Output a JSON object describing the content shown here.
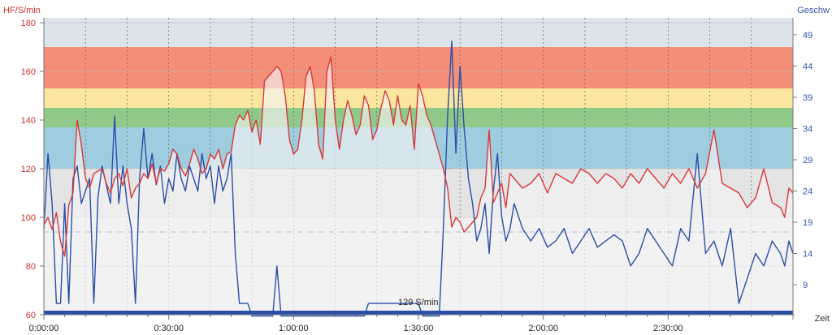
{
  "header": {
    "left_axis_title": "HF/S/min",
    "right_axis_title": "Geschw",
    "x_axis_title": "Zeit"
  },
  "colors": {
    "hr_line": "#d63a3a",
    "speed_line": "#2a4fa8",
    "zone_top": "#dde3ea",
    "zone_red": "#f48e78",
    "zone_yellow": "#fbe6a0",
    "zone_green": "#8ec987",
    "zone_blue": "#9ecde0",
    "zone_grey": "#e4e4e4",
    "plot_bg": "#f0eff0",
    "hr_fill": "#f5f2f2",
    "left_tick_color": "#d03030",
    "right_tick_color": "#3355aa"
  },
  "annotation": {
    "text": "129 S/min"
  },
  "chart_data": {
    "type": "line",
    "x_unit": "minutes",
    "xlim": [
      0,
      180
    ],
    "x_ticks": [
      {
        "value": 0,
        "label": "0:00:00"
      },
      {
        "value": 30,
        "label": "0:30:00"
      },
      {
        "value": 60,
        "label": "1:00:00"
      },
      {
        "value": 90,
        "label": "1:30:00"
      },
      {
        "value": 120,
        "label": "2:00:00"
      },
      {
        "value": 150,
        "label": "2:30:00"
      }
    ],
    "left_axis": {
      "label": "HF/S/min",
      "ylim": [
        60,
        182
      ],
      "ticks": [
        60,
        80,
        100,
        120,
        140,
        160,
        180
      ]
    },
    "right_axis": {
      "label": "Geschw",
      "ticks": [
        9,
        14,
        19,
        24,
        29,
        34,
        39,
        44,
        49
      ]
    },
    "hr_zones": [
      {
        "from": 170,
        "to": 182,
        "color": "zone_top"
      },
      {
        "from": 153,
        "to": 170,
        "color": "zone_red"
      },
      {
        "from": 145,
        "to": 153,
        "color": "zone_yellow"
      },
      {
        "from": 137,
        "to": 145,
        "color": "zone_green"
      },
      {
        "from": 120,
        "to": 137,
        "color": "zone_blue"
      },
      {
        "from": 100,
        "to": 120,
        "color": "zone_grey"
      }
    ],
    "reference_lines": [
      {
        "axis": "left",
        "value": 120,
        "from_x": 48,
        "to_x": 98,
        "style": "dotted",
        "color": "hr_line"
      },
      {
        "axis": "left",
        "value": 94,
        "style": "dash-dot",
        "color": "speed_line"
      }
    ],
    "series": [
      {
        "name": "HF",
        "axis": "left",
        "x": [
          0,
          1,
          2,
          3,
          4,
          5,
          6,
          7,
          8,
          9,
          10,
          11,
          12,
          14,
          15,
          16,
          17,
          18,
          19,
          20,
          21,
          22,
          23,
          24,
          25,
          26,
          27,
          28,
          29,
          30,
          31,
          32,
          33,
          34,
          35,
          36,
          37,
          38,
          39,
          40,
          41,
          42,
          43,
          44,
          45,
          46,
          47,
          48,
          49,
          50,
          51,
          52,
          53,
          54,
          55,
          56,
          57,
          58,
          59,
          60,
          61,
          62,
          63,
          64,
          65,
          66,
          67,
          68,
          69,
          70,
          71,
          72,
          73,
          74,
          75,
          76,
          77,
          78,
          79,
          80,
          81,
          82,
          83,
          84,
          85,
          86,
          87,
          88,
          89,
          90,
          91,
          92,
          93,
          94,
          95,
          96,
          97,
          98,
          99,
          100,
          101,
          102,
          103,
          104,
          105,
          106,
          107,
          108,
          109,
          110,
          111,
          112,
          113,
          115,
          117,
          119,
          121,
          123,
          125,
          127,
          129,
          131,
          133,
          135,
          137,
          139,
          141,
          143,
          145,
          147,
          149,
          151,
          153,
          155,
          157,
          159,
          161,
          163,
          165,
          167,
          169,
          171,
          173,
          175,
          177,
          178,
          179,
          180
        ],
        "y": [
          97,
          100,
          95,
          102,
          90,
          84,
          105,
          110,
          140,
          130,
          116,
          112,
          118,
          120,
          114,
          110,
          116,
          118,
          113,
          120,
          108,
          112,
          114,
          118,
          116,
          122,
          114,
          120,
          119,
          122,
          128,
          126,
          120,
          117,
          122,
          128,
          124,
          118,
          120,
          126,
          124,
          128,
          120,
          126,
          127,
          138,
          142,
          140,
          144,
          135,
          140,
          130,
          156,
          158,
          160,
          162,
          160,
          150,
          132,
          126,
          128,
          140,
          158,
          162,
          152,
          130,
          124,
          160,
          166,
          140,
          128,
          140,
          148,
          142,
          134,
          138,
          150,
          146,
          132,
          136,
          145,
          152,
          148,
          138,
          150,
          140,
          138,
          146,
          128,
          155,
          150,
          142,
          138,
          132,
          126,
          120,
          112,
          96,
          100,
          98,
          94,
          96,
          98,
          100,
          108,
          112,
          136,
          106,
          110,
          114,
          104,
          118,
          116,
          112,
          114,
          118,
          110,
          118,
          116,
          114,
          120,
          118,
          114,
          118,
          116,
          112,
          118,
          114,
          120,
          116,
          112,
          118,
          114,
          120,
          112,
          118,
          136,
          114,
          112,
          110,
          104,
          108,
          120,
          106,
          104,
          100,
          112,
          110
        ]
      },
      {
        "name": "Geschwindigkeit",
        "axis": "right",
        "x": [
          0,
          1,
          2,
          3,
          4,
          5,
          6,
          7,
          8,
          9,
          10,
          11,
          12,
          13,
          14,
          15,
          16,
          17,
          18,
          19,
          20,
          21,
          22,
          23,
          24,
          25,
          26,
          27,
          28,
          29,
          30,
          31,
          32,
          33,
          34,
          35,
          36,
          37,
          38,
          39,
          40,
          41,
          42,
          43,
          44,
          45,
          46,
          47,
          48,
          49,
          50,
          51,
          52,
          53,
          54,
          55,
          56,
          57,
          58,
          59,
          60,
          61,
          62,
          63,
          64,
          65,
          66,
          67,
          68,
          69,
          70,
          71,
          72,
          73,
          74,
          75,
          76,
          77,
          78,
          79,
          80,
          81,
          82,
          83,
          84,
          85,
          86,
          87,
          88,
          89,
          90,
          91,
          92,
          93,
          94,
          95,
          96,
          97,
          98,
          99,
          100,
          101,
          102,
          103,
          104,
          105,
          106,
          107,
          108,
          109,
          110,
          111,
          112,
          113,
          115,
          117,
          119,
          121,
          123,
          125,
          127,
          129,
          131,
          133,
          135,
          137,
          139,
          141,
          143,
          145,
          147,
          149,
          151,
          153,
          155,
          157,
          159,
          161,
          163,
          165,
          167,
          169,
          171,
          173,
          175,
          177,
          178,
          179,
          180
        ],
        "y": [
          18,
          30,
          22,
          6,
          6,
          22,
          6,
          26,
          28,
          22,
          24,
          26,
          6,
          23,
          28,
          25,
          22,
          36,
          22,
          28,
          22,
          18,
          6,
          26,
          34,
          26,
          30,
          25,
          28,
          22,
          26,
          24,
          30,
          26,
          24,
          28,
          26,
          24,
          30,
          26,
          28,
          22,
          28,
          24,
          26,
          30,
          14,
          6,
          6,
          6,
          4,
          4,
          4,
          4,
          4,
          4,
          12,
          4,
          4,
          4,
          4,
          4,
          4,
          4,
          4,
          4,
          4,
          4,
          4,
          4,
          4,
          4,
          4,
          4,
          4,
          4,
          4,
          4,
          6,
          6,
          6,
          6,
          6,
          6,
          6,
          6,
          6,
          6,
          6,
          6,
          6,
          4,
          4,
          4,
          4,
          4,
          18,
          36,
          48,
          30,
          44,
          34,
          26,
          22,
          16,
          18,
          22,
          14,
          24,
          30,
          20,
          16,
          18,
          22,
          18,
          16,
          18,
          15,
          16,
          18,
          14,
          16,
          18,
          15,
          16,
          17,
          16,
          12,
          14,
          18,
          16,
          14,
          12,
          18,
          16,
          30,
          14,
          16,
          12,
          18,
          6,
          10,
          14,
          12,
          16,
          14,
          12,
          16,
          14
        ]
      }
    ]
  }
}
